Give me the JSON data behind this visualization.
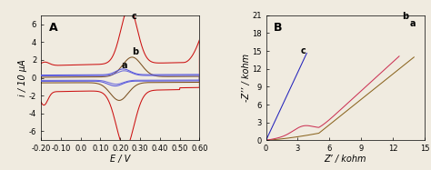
{
  "panel_A": {
    "label": "A",
    "xlabel": "E / V",
    "ylabel": "i / 10 μA",
    "xlim": [
      -0.2,
      0.6
    ],
    "ylim": [
      -7.0,
      7.0
    ],
    "yticks": [
      -6,
      -4,
      -2,
      0,
      2,
      4,
      6
    ],
    "xticks": [
      -0.2,
      -0.1,
      0.0,
      0.1,
      0.2,
      0.3,
      0.4,
      0.5,
      0.6
    ],
    "curves": {
      "a_color": "#5555dd",
      "b_color": "#7b5020",
      "c_color": "#cc1111"
    },
    "label_positions": {
      "a": [
        0.205,
        1.05
      ],
      "b": [
        0.26,
        2.65
      ],
      "c": [
        0.255,
        6.55
      ]
    }
  },
  "panel_B": {
    "label": "B",
    "xlabel": "Z’ / kohm",
    "ylabel": "-Z’’ / kohm",
    "xlim": [
      0,
      15
    ],
    "ylim": [
      0,
      21
    ],
    "yticks": [
      0,
      3,
      6,
      9,
      12,
      15,
      18,
      21
    ],
    "xticks": [
      0,
      3,
      6,
      9,
      12,
      15
    ],
    "curves": {
      "a_color": "#8b6520",
      "b_color": "#cc3355",
      "c_color": "#2222bb"
    },
    "label_positions": {
      "a": [
        13.6,
        19.2
      ],
      "b": [
        12.9,
        20.4
      ],
      "c": [
        3.3,
        14.5
      ]
    }
  },
  "background_color": "#f0ebe0",
  "label_fontsize": 7,
  "tick_fontsize": 6,
  "bold_fontsize": 9
}
